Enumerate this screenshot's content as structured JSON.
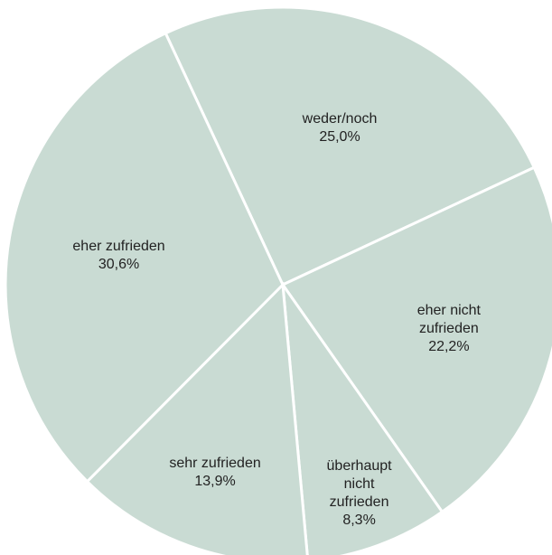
{
  "chart_data": {
    "type": "pie",
    "categories": [
      "weder/noch",
      "eher nicht zufrieden",
      "überhaupt nicht zufrieden",
      "sehr zufrieden",
      "eher zufrieden"
    ],
    "values": [
      25.0,
      22.2,
      8.3,
      13.9,
      30.6
    ],
    "value_labels": [
      "25,0%",
      "22,2%",
      "8,3%",
      "13,9%",
      "30,6%"
    ],
    "color": "#c9dbd3"
  }
}
